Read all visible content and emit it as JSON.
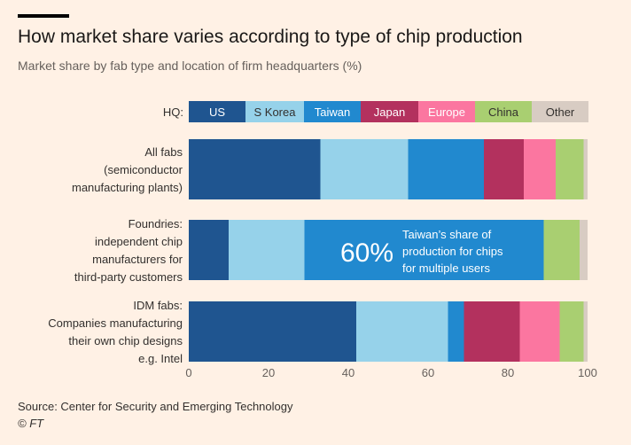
{
  "header": {
    "title": "How market share varies according to type of chip production",
    "subtitle": "Market share by fab type and location of firm headquarters (%)"
  },
  "legend": {
    "label": "HQ:"
  },
  "annotation": {
    "value": "60%",
    "lines": [
      "Taiwan’s share of",
      "production for chips",
      "for multiple users"
    ]
  },
  "footer": {
    "source": "Source: Center for Security and Emerging Technology",
    "credit": "© FT"
  },
  "chart_data": {
    "type": "bar",
    "orientation": "horizontal",
    "stacked": true,
    "xlim": [
      0,
      100
    ],
    "ticks": [
      0,
      20,
      40,
      60,
      80,
      100
    ],
    "categories": [
      [
        "All fabs",
        "(semiconductor",
        "manufacturing plants)"
      ],
      [
        "Foundries:",
        "independent chip",
        "manufacturers for",
        "third-party customers"
      ],
      [
        "IDM fabs:",
        "Companies manufacturing",
        "their own chip designs",
        "e.g. Intel"
      ]
    ],
    "series": [
      {
        "name": "US",
        "color": "#1f5590",
        "text_color": "#ffffff",
        "values": [
          33,
          10,
          42
        ]
      },
      {
        "name": "S Korea",
        "color": "#96d2ea",
        "text_color": "#33302e",
        "values": [
          22,
          19,
          23
        ]
      },
      {
        "name": "Taiwan",
        "color": "#2189cf",
        "text_color": "#ffffff",
        "values": [
          19,
          60,
          4
        ]
      },
      {
        "name": "Japan",
        "color": "#b3315e",
        "text_color": "#ffffff",
        "values": [
          10,
          0,
          14
        ]
      },
      {
        "name": "Europe",
        "color": "#fb76a0",
        "text_color": "#ffffff",
        "values": [
          8,
          0,
          10
        ]
      },
      {
        "name": "China",
        "color": "#a9cf71",
        "text_color": "#33302e",
        "values": [
          7,
          9,
          6
        ]
      },
      {
        "name": "Other",
        "color": "#d8ccc3",
        "text_color": "#33302e",
        "values": [
          1,
          2,
          1
        ]
      }
    ]
  }
}
